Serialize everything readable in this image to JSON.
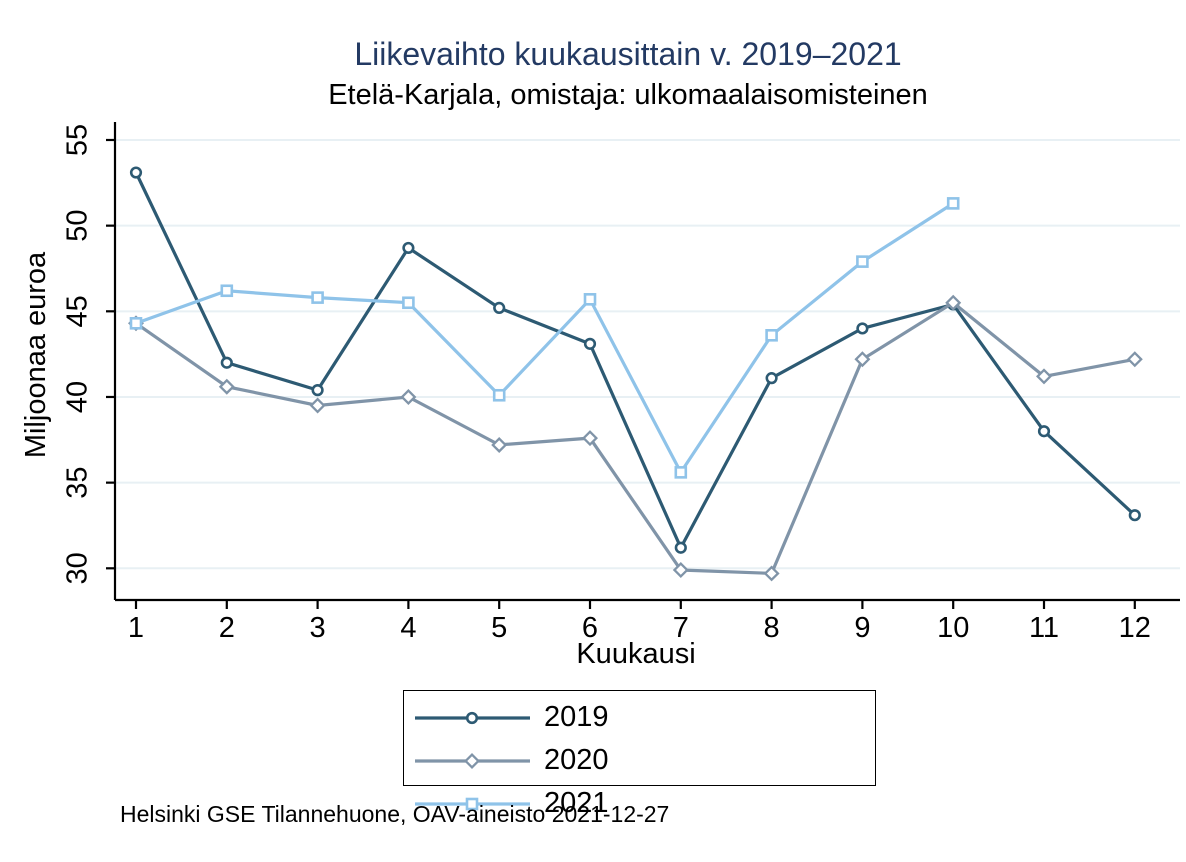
{
  "source_note": "Helsinki GSE Tilannehuone, OAV-aineisto 2021-12-27",
  "chart_data": {
    "type": "line",
    "title": "Liikevaihto kuukausittain v. 2019–2021",
    "subtitle": "Etelä-Karjala, omistaja: ulkomaalaisomisteinen",
    "title_color": "#233a63",
    "xlabel": "Kuukausi",
    "ylabel": "Miljoonaa euroa",
    "x": [
      1,
      2,
      3,
      4,
      5,
      6,
      7,
      8,
      9,
      10,
      11,
      12
    ],
    "yticks": [
      30,
      35,
      40,
      45,
      50,
      55
    ],
    "ylim": [
      28.15,
      56.05
    ],
    "grid": true,
    "grid_color": "#e8f0f4",
    "axis_color": "#000000",
    "legend_position": "bottom",
    "series": [
      {
        "name": "2019",
        "marker": "circle",
        "color": "#2d5a73",
        "values": [
          53.1,
          42.0,
          40.4,
          48.7,
          45.2,
          43.1,
          31.2,
          41.1,
          44.0,
          45.4,
          38.0,
          33.1
        ]
      },
      {
        "name": "2020",
        "marker": "diamond",
        "color": "#8094a8",
        "values": [
          44.3,
          40.6,
          39.5,
          40.0,
          37.2,
          37.6,
          29.9,
          29.7,
          42.2,
          45.5,
          41.2,
          42.2
        ]
      },
      {
        "name": "2021",
        "marker": "square",
        "color": "#8fc3e9",
        "values": [
          44.3,
          46.2,
          45.8,
          45.5,
          40.1,
          45.7,
          35.6,
          43.6,
          47.9,
          51.3
        ]
      }
    ]
  }
}
